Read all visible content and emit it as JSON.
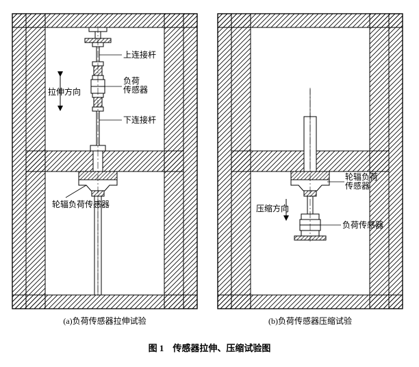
{
  "figure": {
    "caption": "图 1　传感器拉伸、压缩试验图",
    "caption_fontsize": 13,
    "label_fontsize": 12,
    "subcap_fontsize": 12,
    "stroke": "#000000",
    "hatch_color": "#000000",
    "bg": "#ffffff",
    "hatch_spacing": 7,
    "hatch_width": 0.8
  },
  "panels": {
    "left": {
      "subcaption": "(a)负荷传感器拉伸试验",
      "labels": {
        "upper_rod": "上连接杆",
        "tension_dir": "拉伸方向",
        "load_sensor": "负荷\n传感器",
        "lower_rod": "下连接杆",
        "spoke_sensor": "轮辐负荷传感器"
      }
    },
    "right": {
      "subcaption": "(b)负荷传感器压缩试验",
      "labels": {
        "spoke_sensor": "轮辐负荷\n传感器",
        "compress_dir": "压缩方向",
        "load_sensor": "负荷传感器"
      }
    }
  }
}
